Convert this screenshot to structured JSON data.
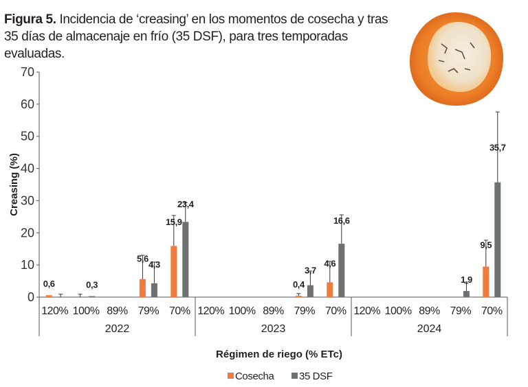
{
  "caption": {
    "figure_label": "Figura 5.",
    "text": " Incidencia de ‘creasing’ en los momentos de cosecha y tras 35 días de almacenaje en frío (35 DSF), para tres temporadas evaluadas."
  },
  "photo": {
    "description": "orange-with-creasing-photo"
  },
  "colors": {
    "cosecha": "#ef7b3e",
    "dsf35": "#6d7173",
    "axis": "#555555",
    "error_bar": "#333333"
  },
  "chart_data": {
    "type": "bar",
    "title": "Incidencia de ‘creasing’ en los momentos de cosecha y tras 35 días de almacenaje en frío (35 DSF), para tres temporadas evaluadas.",
    "xlabel": "Régimen de riego (% ETc)",
    "ylabel": "Creasing (%)",
    "ylim": [
      0,
      70
    ],
    "yticks": [
      0,
      10,
      20,
      30,
      40,
      50,
      60,
      70
    ],
    "grid": false,
    "legend_position": "bottom-center",
    "groups": [
      "2022",
      "2023",
      "2024"
    ],
    "categories": [
      "120%",
      "100%",
      "89%",
      "79%",
      "70%"
    ],
    "series": [
      {
        "name": "Cosecha",
        "values": {
          "2022": [
            0.6,
            0.0,
            0.0,
            5.6,
            15.9
          ],
          "2023": [
            0.0,
            0.0,
            0.0,
            0.4,
            4.6
          ],
          "2024": [
            0.0,
            0.0,
            0.0,
            0.0,
            9.5
          ]
        },
        "error_upper": {
          "2022": [
            null,
            0.9,
            null,
            13.0,
            25.4
          ],
          "2023": [
            null,
            null,
            null,
            1.1,
            11.1
          ],
          "2024": [
            null,
            null,
            null,
            null,
            17.7
          ]
        },
        "labels": {
          "2022": [
            "0,6",
            null,
            null,
            "5,6",
            "15,9"
          ],
          "2023": [
            null,
            null,
            null,
            "0,4",
            "4,6"
          ],
          "2024": [
            null,
            null,
            null,
            null,
            "9,5"
          ]
        }
      },
      {
        "name": "35 DSF",
        "values": {
          "2022": [
            0.0,
            0.3,
            0.0,
            4.3,
            23.4
          ],
          "2023": [
            0.0,
            0.0,
            0.0,
            3.7,
            16.6
          ],
          "2024": [
            0.0,
            0.0,
            0.0,
            1.9,
            35.7
          ]
        },
        "error_upper": {
          "2022": [
            0.9,
            null,
            null,
            10.9,
            29.4
          ],
          "2023": [
            null,
            null,
            null,
            8.1,
            25.6
          ],
          "2024": [
            null,
            null,
            null,
            4.3,
            57.6
          ]
        },
        "labels": {
          "2022": [
            null,
            "0,3",
            null,
            "4,3",
            "23,4"
          ],
          "2023": [
            null,
            null,
            null,
            "3,7",
            "16,6"
          ],
          "2024": [
            null,
            null,
            null,
            "1,9",
            "35,7"
          ]
        }
      }
    ]
  }
}
